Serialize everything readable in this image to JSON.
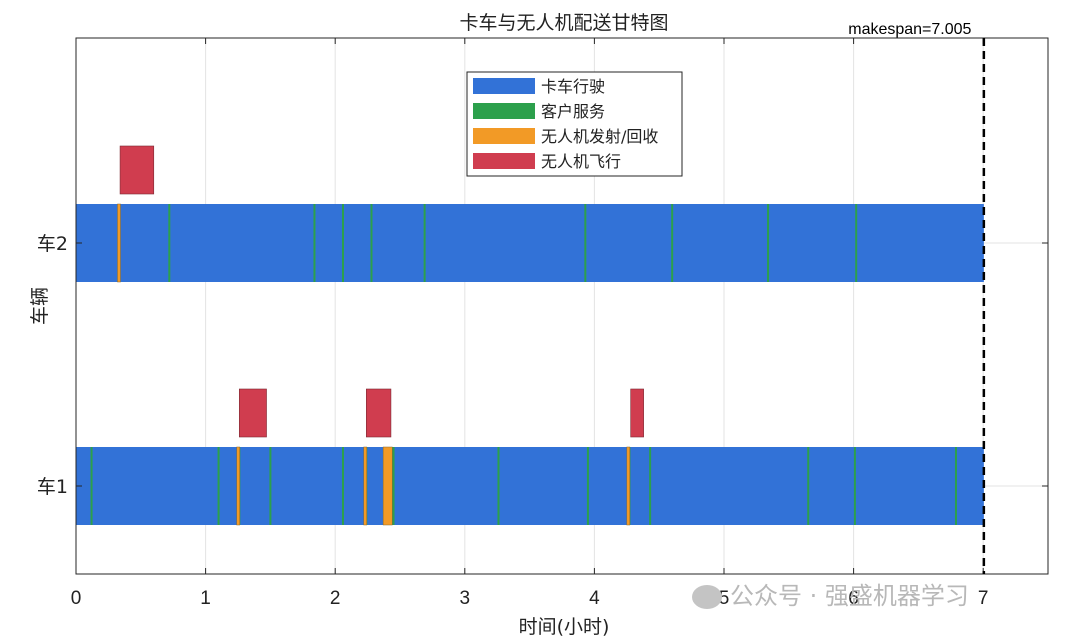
{
  "chart_data": {
    "type": "gantt",
    "title": "卡车与无人机配送甘特图",
    "xlabel": "时间(小时)",
    "ylabel": "车辆",
    "xlim": [
      0,
      7.5
    ],
    "xticks": [
      0,
      1,
      2,
      3,
      4,
      5,
      6,
      7
    ],
    "grid": true,
    "makespan": 7.005,
    "makespan_label": "makespan=7.005",
    "categories": [
      "车1",
      "车2"
    ],
    "legend": {
      "position": "top-center",
      "entries": [
        {
          "key": "truck",
          "label": "卡车行驶",
          "color": "#3272d7"
        },
        {
          "key": "service",
          "label": "客户服务",
          "color": "#2ca04c"
        },
        {
          "key": "launch",
          "label": "无人机发射/回收",
          "color": "#f29a26"
        },
        {
          "key": "flight",
          "label": "无人机飞行",
          "color": "#d03d4f"
        }
      ]
    },
    "vehicles": [
      {
        "name": "车1",
        "truck": [
          0,
          7.005
        ],
        "service": [
          0.12,
          1.1,
          1.26,
          1.5,
          2.06,
          2.24,
          2.45,
          3.26,
          3.95,
          4.27,
          4.43,
          5.65,
          6.01,
          6.79
        ],
        "launch": [
          [
            1.24,
            1.26
          ],
          [
            2.22,
            2.24
          ],
          [
            2.37,
            2.44
          ],
          [
            4.25,
            4.27
          ]
        ],
        "flight": [
          [
            1.26,
            1.47
          ],
          [
            2.24,
            2.43
          ],
          [
            4.28,
            4.38
          ]
        ]
      },
      {
        "name": "车2",
        "truck": [
          0,
          7.005
        ],
        "service": [
          0.72,
          1.84,
          2.06,
          2.28,
          2.69,
          3.93,
          4.6,
          5.34,
          6.02
        ],
        "launch": [
          [
            0.32,
            0.34
          ]
        ],
        "flight": [
          [
            0.34,
            0.6
          ]
        ]
      }
    ]
  },
  "watermark": "公众号 · 强盛机器学习"
}
